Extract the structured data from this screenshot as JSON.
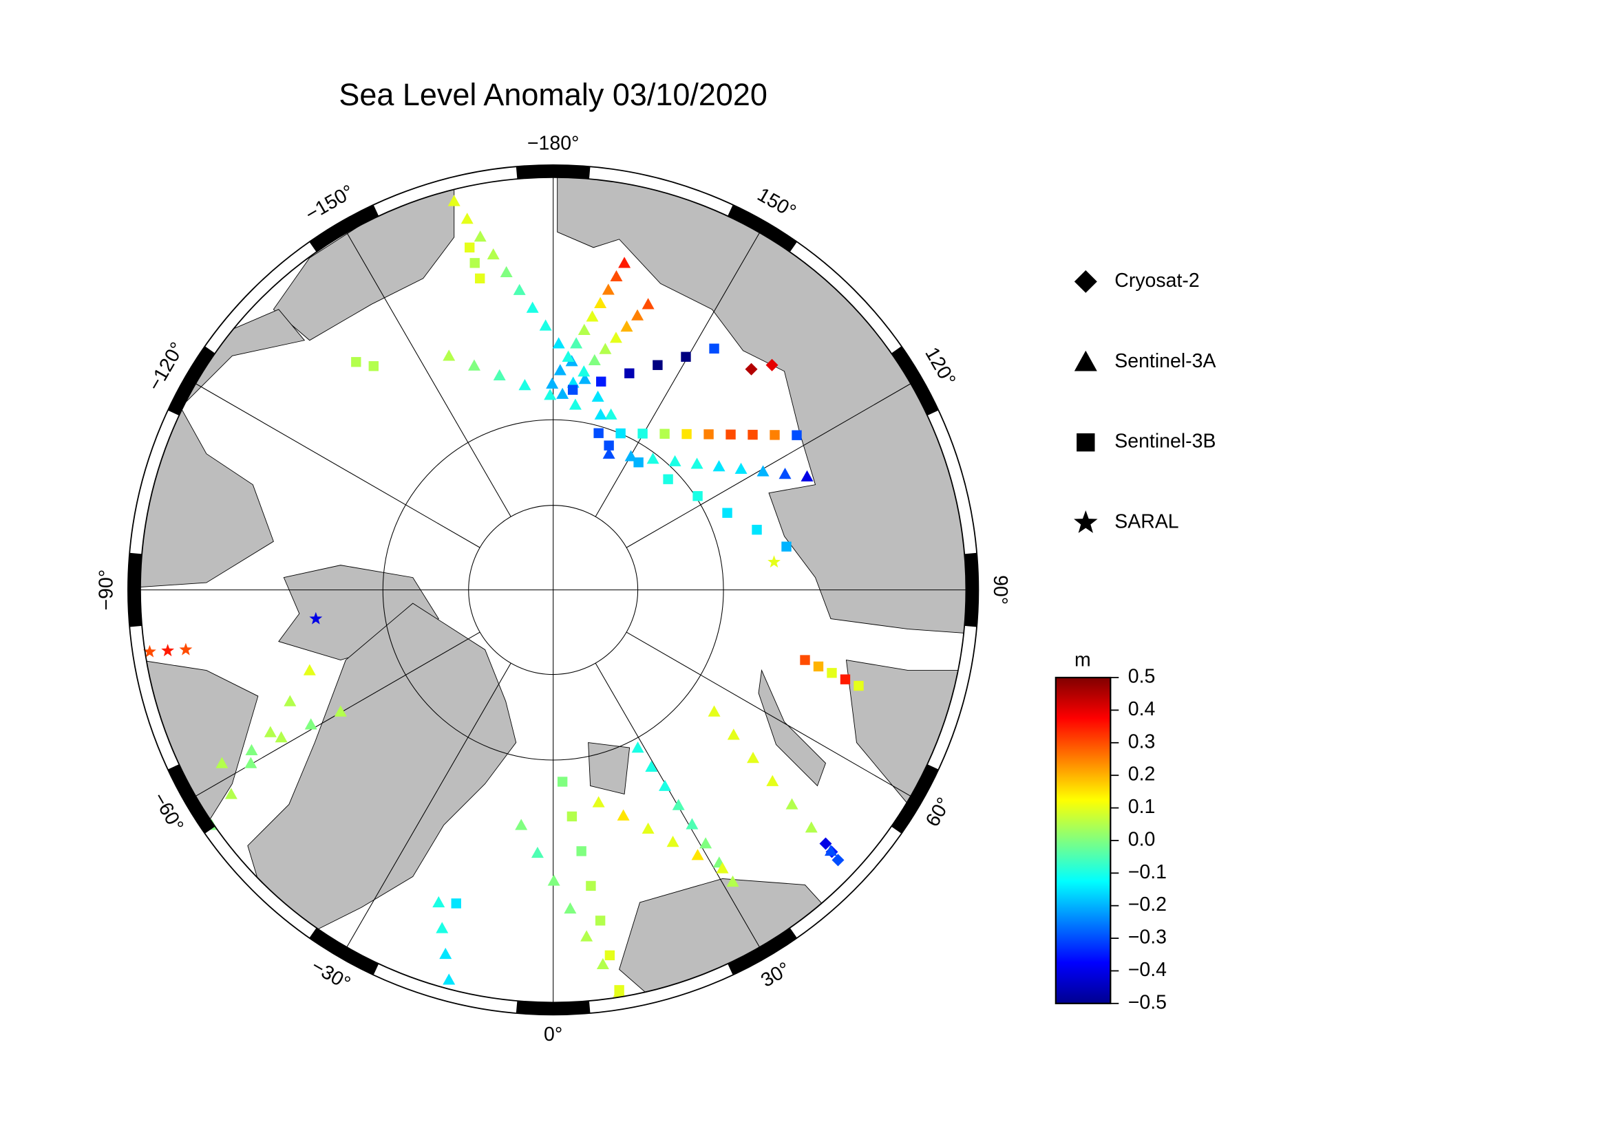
{
  "title": "Sea Level Anomaly 03/10/2020",
  "graticule": {
    "longitudes": [
      {
        "value": -180,
        "label": "−180°"
      },
      {
        "value": 150,
        "label": "150°"
      },
      {
        "value": 120,
        "label": "120°"
      },
      {
        "value": 90,
        "label": "90°"
      },
      {
        "value": 60,
        "label": "60°"
      },
      {
        "value": 30,
        "label": "30°"
      },
      {
        "value": 0,
        "label": "0°"
      },
      {
        "value": -30,
        "label": "−30°"
      },
      {
        "value": -60,
        "label": "−60°"
      },
      {
        "value": -90,
        "label": "−90°"
      },
      {
        "value": -120,
        "label": "−120°"
      },
      {
        "value": -150,
        "label": "−150°"
      }
    ]
  },
  "satellites": [
    {
      "name": "Cryosat-2",
      "marker": "diamond",
      "tracks": [
        [
          -0.4,
          -0.35,
          -0.3
        ],
        [
          0.45,
          0.4
        ]
      ]
    },
    {
      "name": "Sentinel-3A",
      "marker": "triangle",
      "tracks": [
        [
          0.1,
          0.1,
          0.05,
          0.05,
          0,
          -0.05,
          -0.1,
          -0.1,
          -0.15,
          -0.2,
          -0.2,
          -0.15,
          -0.1
        ],
        [
          0.35,
          0.3,
          0.25,
          0.15,
          0.1,
          0.05,
          -0.05,
          -0.1,
          -0.2,
          -0.2
        ],
        [
          0.3,
          0.25,
          0.2,
          0.1,
          0.05,
          0,
          -0.1,
          -0.15,
          -0.2
        ],
        [
          0.05,
          0,
          -0.05,
          -0.1,
          -0.1,
          -0.1,
          -0.15
        ],
        [
          -0.3,
          -0.2,
          -0.1,
          -0.1,
          -0.1,
          -0.15,
          -0.15,
          -0.2,
          -0.3,
          -0.4
        ],
        [
          -0.1,
          -0.1,
          -0.1,
          -0.05,
          -0.05,
          0,
          0,
          0.05
        ],
        [
          0.1,
          0.15,
          0.1,
          0.1,
          0.15,
          0.1
        ],
        [
          0,
          -0.05,
          0,
          0,
          0.05,
          0.05,
          0.1
        ],
        [
          0.1,
          0.1,
          0.1,
          0.1,
          0.05,
          0.05,
          -0.3
        ],
        [
          -0.1,
          -0.1,
          -0.15,
          -0.15
        ],
        [
          0,
          0.05,
          0,
          0.05,
          0.05,
          0.1
        ],
        [
          0.05,
          0,
          0.05,
          0,
          0.05
        ]
      ]
    },
    {
      "name": "Sentinel-3B",
      "marker": "square",
      "tracks": [
        [
          0.1,
          0.05,
          0.1
        ],
        [
          -0.3,
          -0.15,
          -0.1,
          0.05,
          0.15,
          0.25,
          0.3,
          0.3,
          0.25,
          -0.3
        ],
        [
          -0.3,
          -0.2,
          -0.1,
          -0.1,
          -0.15,
          -0.15,
          -0.2
        ],
        [
          -0.3,
          -0.35,
          -0.45,
          -0.5,
          -0.5,
          -0.3
        ],
        [
          0,
          0.05,
          0,
          0.05,
          0.05,
          0.1,
          0.1
        ],
        [
          0.3,
          0.2,
          0.1,
          0.35,
          0.1
        ],
        [
          -0.15
        ],
        [
          0.05,
          0.05
        ]
      ]
    },
    {
      "name": "SARAL",
      "marker": "star",
      "tracks": [
        [
          0.3,
          0.35,
          0.3
        ],
        [
          -0.4
        ],
        [
          0.1
        ]
      ]
    }
  ],
  "colorbar": {
    "label": "m",
    "lim": [
      -0.5,
      0.5
    ],
    "ticks": [
      0.5,
      0.4,
      0.3,
      0.2,
      0.1,
      {
        "value": 0,
        "label": "0.0"
      },
      {
        "value": -0.1,
        "label": "−0.1"
      },
      {
        "value": -0.2,
        "label": "−0.2"
      },
      {
        "value": -0.3,
        "label": "−0.3"
      },
      {
        "value": -0.4,
        "label": "−0.4"
      },
      {
        "value": -0.5,
        "label": "−0.5"
      }
    ]
  }
}
